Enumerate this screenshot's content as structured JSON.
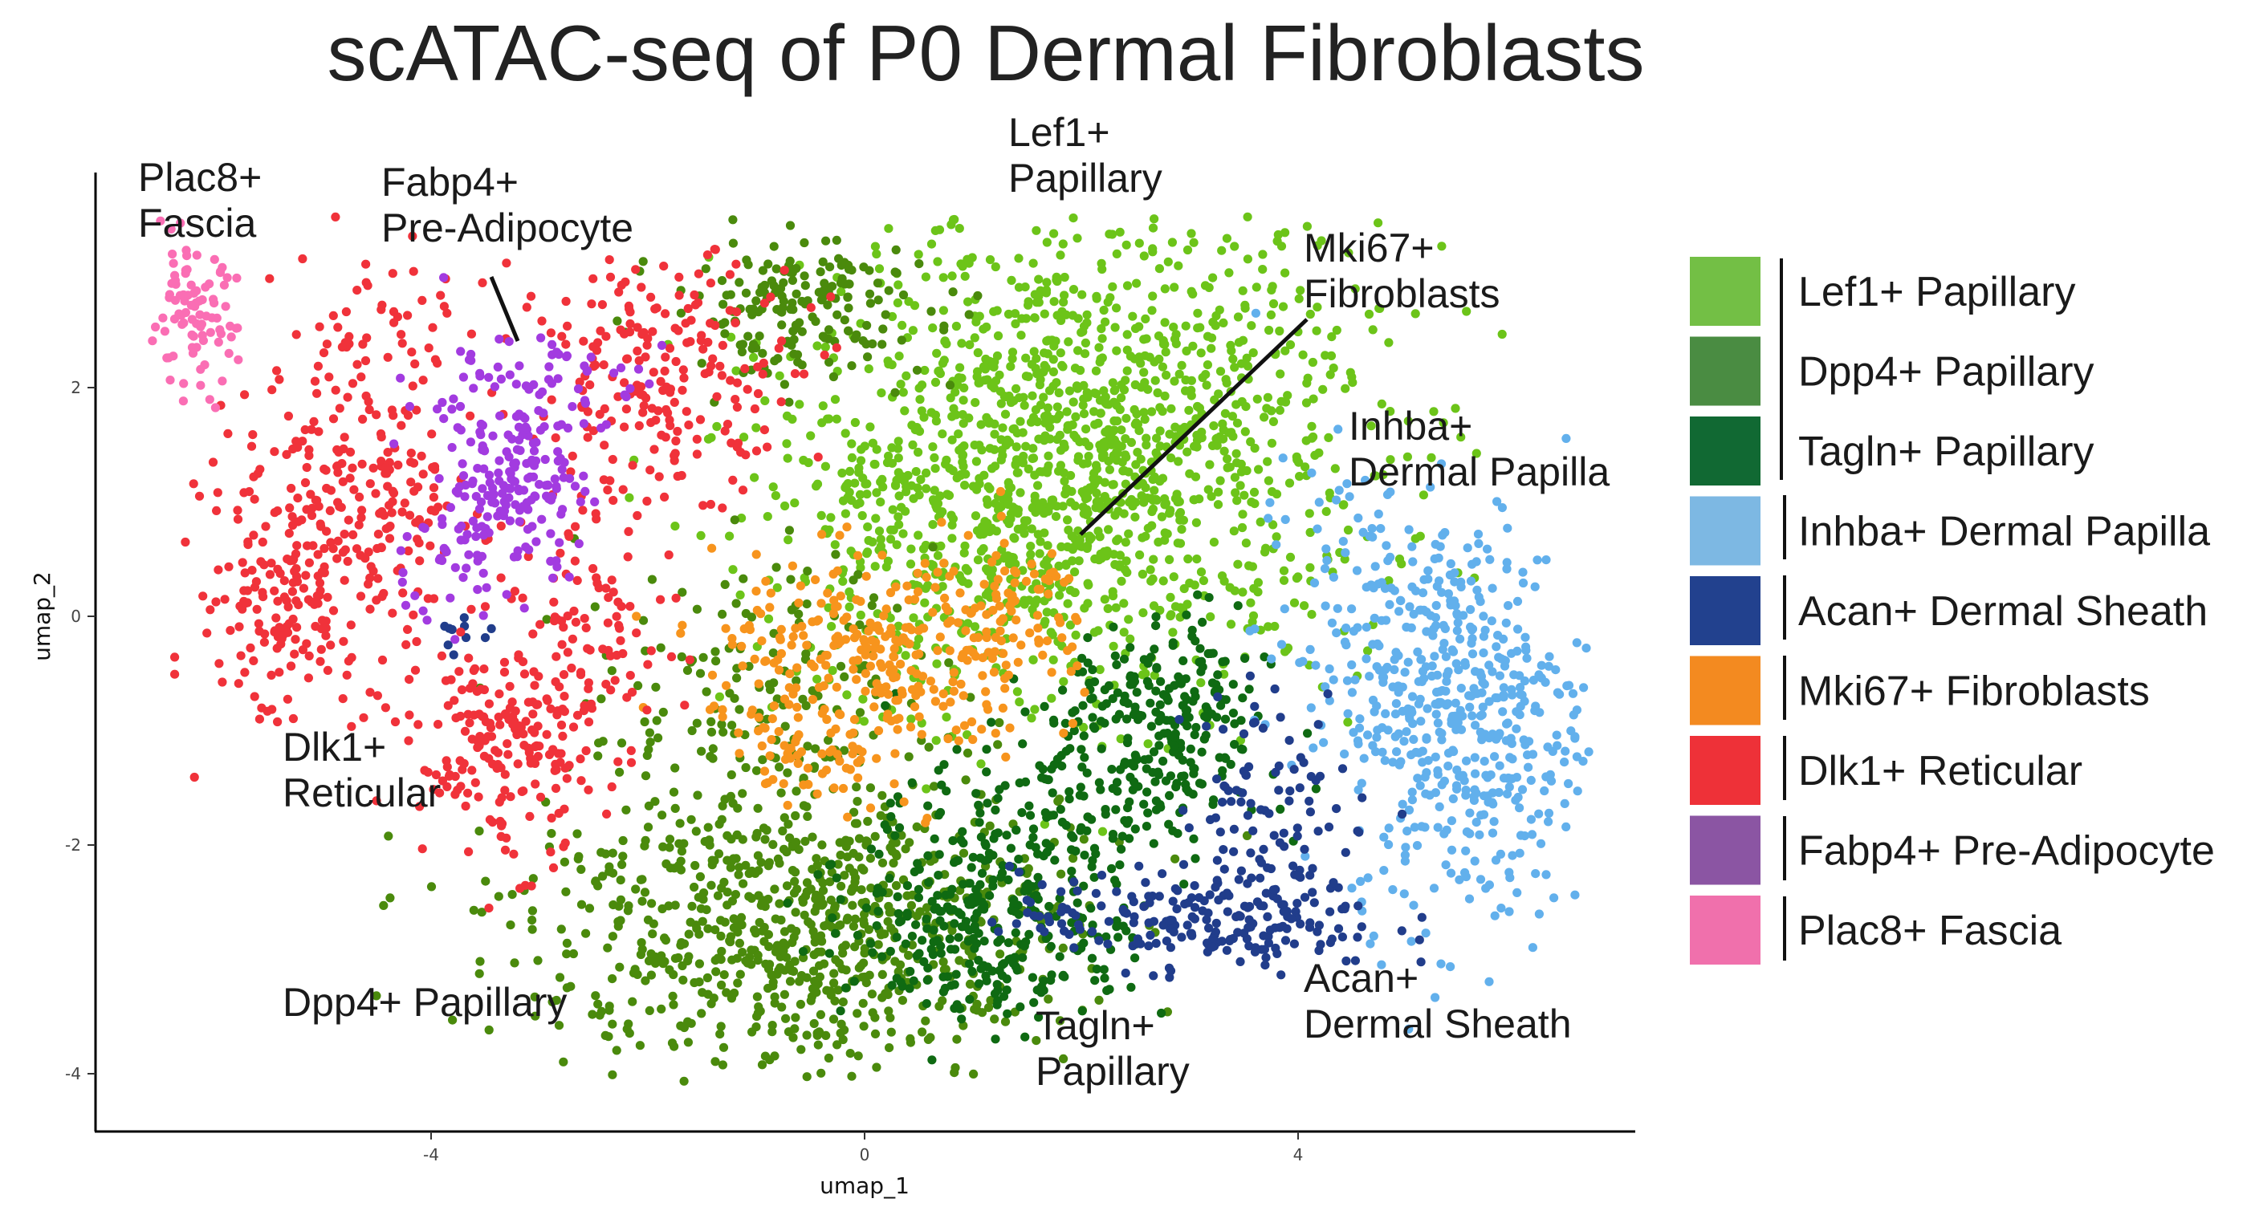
{
  "chart_data": {
    "type": "scatter",
    "title": "scATAC-seq of P0 Dermal Fibroblasts",
    "xlabel": "umap_1",
    "ylabel": "umap_2",
    "xlim": [
      -7.1,
      7.2
    ],
    "ylim": [
      -4.5,
      3.9
    ],
    "xticks": [
      -4,
      0,
      4
    ],
    "yticks": [
      -4,
      -2,
      0,
      2
    ],
    "xtick_labels": [
      "-4",
      "0",
      "4"
    ],
    "ytick_labels": [
      "-4",
      "-2",
      "0",
      "2"
    ],
    "grid": false,
    "legend": "right",
    "series": [
      {
        "name": "Lef1+ Papillary",
        "color": "#6cc419",
        "legend_color": "#73bf45",
        "clusters": [
          {
            "cx": 2.1,
            "cy": 1.5,
            "sx": 1.3,
            "sy": 1.0,
            "n": 1300
          },
          {
            "cx": 0.8,
            "cy": 0.5,
            "sx": 1.0,
            "sy": 0.7,
            "n": 260
          }
        ]
      },
      {
        "name": "Dpp4+ Papillary",
        "color": "#4a8a0c",
        "legend_color": "#4a8c42",
        "clusters": [
          {
            "cx": -0.6,
            "cy": -2.7,
            "sx": 1.25,
            "sy": 0.65,
            "n": 820
          },
          {
            "cx": -0.6,
            "cy": 2.7,
            "sx": 0.6,
            "sy": 0.3,
            "n": 180
          },
          {
            "cx": -1.0,
            "cy": -0.7,
            "sx": 0.8,
            "sy": 0.6,
            "n": 160
          }
        ]
      },
      {
        "name": "Tagln+ Papillary",
        "color": "#0f6a12",
        "legend_color": "#116933",
        "clusters": [
          {
            "cx": 1.2,
            "cy": -2.6,
            "sx": 0.65,
            "sy": 0.5,
            "n": 330
          },
          {
            "cx": 2.8,
            "cy": -0.9,
            "sx": 0.45,
            "sy": 0.45,
            "n": 200
          },
          {
            "cx": 2.0,
            "cy": -1.5,
            "sx": 0.7,
            "sy": 0.45,
            "n": 140
          }
        ]
      },
      {
        "name": "Inhba+ Dermal Papilla",
        "color": "#62b0ec",
        "legend_color": "#7db8e3",
        "clusters": [
          {
            "cx": 5.6,
            "cy": -0.9,
            "sx": 0.55,
            "sy": 0.9,
            "n": 420
          },
          {
            "cx": 4.7,
            "cy": -0.2,
            "sx": 0.55,
            "sy": 0.8,
            "n": 160
          }
        ]
      },
      {
        "name": "Acan+ Dermal Sheath",
        "color": "#213d8b",
        "legend_color": "#22418e",
        "clusters": [
          {
            "cx": 3.1,
            "cy": -2.65,
            "sx": 0.85,
            "sy": 0.22,
            "n": 210
          },
          {
            "cx": 3.8,
            "cy": -1.6,
            "sx": 0.45,
            "sy": 0.5,
            "n": 90
          },
          {
            "cx": -3.7,
            "cy": -0.1,
            "sx": 0.12,
            "sy": 0.12,
            "n": 10
          }
        ]
      },
      {
        "name": "Mki67+ Fibroblasts",
        "color": "#f7941d",
        "legend_color": "#f38a20",
        "clusters": [
          {
            "cx": 0.1,
            "cy": -0.4,
            "sx": 0.75,
            "sy": 0.45,
            "n": 300
          },
          {
            "cx": 1.4,
            "cy": 0.1,
            "sx": 0.35,
            "sy": 0.3,
            "n": 60
          },
          {
            "cx": -0.4,
            "cy": -1.3,
            "sx": 0.3,
            "sy": 0.25,
            "n": 40
          }
        ]
      },
      {
        "name": "Dlk1+ Reticular",
        "color": "#f0323a",
        "legend_color": "#ee3138",
        "clusters": [
          {
            "cx": -4.6,
            "cy": 1.2,
            "sx": 0.55,
            "sy": 0.9,
            "n": 280
          },
          {
            "cx": -5.4,
            "cy": 0.2,
            "sx": 0.35,
            "sy": 0.6,
            "n": 140
          },
          {
            "cx": -3.3,
            "cy": -1.15,
            "sx": 0.4,
            "sy": 0.5,
            "n": 200
          },
          {
            "cx": -1.8,
            "cy": 2.1,
            "sx": 0.6,
            "sy": 0.5,
            "n": 210
          },
          {
            "cx": -2.4,
            "cy": 0.1,
            "sx": 0.35,
            "sy": 0.55,
            "n": 80
          }
        ]
      },
      {
        "name": "Fabp4+ Pre-Adipocyte",
        "color": "#a23be0",
        "legend_color": "#8b55a3",
        "clusters": [
          {
            "cx": -3.2,
            "cy": 1.1,
            "sx": 0.3,
            "sy": 0.35,
            "n": 130
          },
          {
            "cx": -3.2,
            "cy": 1.9,
            "sx": 0.55,
            "sy": 0.35,
            "n": 90
          },
          {
            "cx": -3.9,
            "cy": 0.5,
            "sx": 0.3,
            "sy": 0.3,
            "n": 40
          }
        ]
      },
      {
        "name": "Plac8+ Fascia",
        "color": "#fa6eb4",
        "legend_color": "#f070ac",
        "clusters": [
          {
            "cx": -6.2,
            "cy": 2.6,
            "sx": 0.2,
            "sy": 0.3,
            "n": 90
          }
        ]
      }
    ],
    "annotations": [
      {
        "lines": [
          "Plac8+",
          "Fascia"
        ]
      },
      {
        "lines": [
          "Fabp4+",
          "Pre-Adipocyte"
        ]
      },
      {
        "lines": [
          "Lef1+",
          "Papillary"
        ]
      },
      {
        "lines": [
          "Mki67+",
          "Fibroblasts"
        ]
      },
      {
        "lines": [
          "Inhba+",
          "Dermal Papilla"
        ]
      },
      {
        "lines": [
          "Dlk1+",
          "Reticular"
        ]
      },
      {
        "lines": [
          "Dpp4+ Papillary"
        ]
      },
      {
        "lines": [
          "Tagln+",
          "Papillary"
        ]
      },
      {
        "lines": [
          "Acan+",
          "Dermal Sheath"
        ]
      }
    ]
  }
}
